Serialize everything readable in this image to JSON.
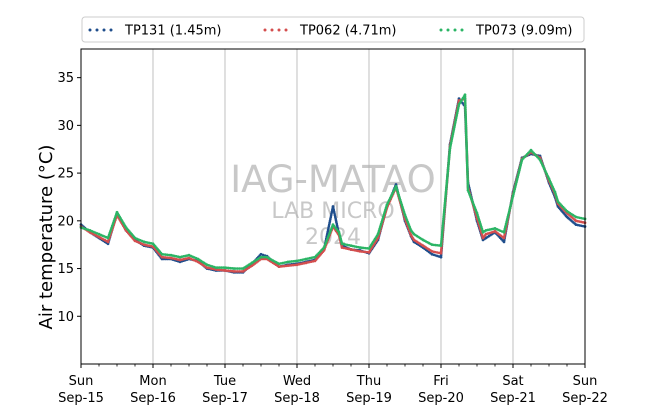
{
  "chart_data": {
    "type": "scatter",
    "ylabel": "Air temperature (°C)",
    "ylim": [
      5,
      38
    ],
    "yticks": [
      10,
      15,
      20,
      25,
      30,
      35
    ],
    "xlim": [
      "2024-09-15T00:00",
      "2024-09-22T00:00"
    ],
    "xticks": [
      {
        "day": "Sun",
        "date": "Sep-15"
      },
      {
        "day": "Mon",
        "date": "Sep-16"
      },
      {
        "day": "Tue",
        "date": "Sep-17"
      },
      {
        "day": "Wed",
        "date": "Sep-18"
      },
      {
        "day": "Thu",
        "date": "Sep-19"
      },
      {
        "day": "Fri",
        "date": "Sep-20"
      },
      {
        "day": "Sat",
        "date": "Sep-21"
      },
      {
        "day": "Sun",
        "date": "Sep-22"
      }
    ],
    "grid": "vertical",
    "legend_placement": "top",
    "watermark": [
      "IAG-MATAO",
      "LAB MICRO",
      "2024"
    ],
    "series": [
      {
        "name": "TP131 (1.45m)",
        "color": "#1f4e8c",
        "x": [
          "2024-09-15T00:00",
          "2024-09-15T03:00",
          "2024-09-15T06:00",
          "2024-09-15T09:00",
          "2024-09-15T12:00",
          "2024-09-15T15:00",
          "2024-09-15T18:00",
          "2024-09-15T21:00",
          "2024-09-16T00:00",
          "2024-09-16T03:00",
          "2024-09-16T06:00",
          "2024-09-16T09:00",
          "2024-09-16T12:00",
          "2024-09-16T15:00",
          "2024-09-16T18:00",
          "2024-09-16T21:00",
          "2024-09-17T00:00",
          "2024-09-17T03:00",
          "2024-09-17T06:00",
          "2024-09-17T09:00",
          "2024-09-17T12:00",
          "2024-09-17T14:00",
          "2024-09-17T15:00",
          "2024-09-17T18:00",
          "2024-09-17T21:00",
          "2024-09-18T00:00",
          "2024-09-18T03:00",
          "2024-09-18T06:00",
          "2024-09-18T09:00",
          "2024-09-18T12:00",
          "2024-09-18T14:00",
          "2024-09-18T15:00",
          "2024-09-18T18:00",
          "2024-09-18T21:00",
          "2024-09-19T00:00",
          "2024-09-19T03:00",
          "2024-09-19T06:00",
          "2024-09-19T09:00",
          "2024-09-19T12:00",
          "2024-09-19T14:00",
          "2024-09-19T15:00",
          "2024-09-19T18:00",
          "2024-09-19T21:00",
          "2024-09-20T00:00",
          "2024-09-20T03:00",
          "2024-09-20T06:00",
          "2024-09-20T08:00",
          "2024-09-20T09:00",
          "2024-09-20T12:00",
          "2024-09-20T14:00",
          "2024-09-20T15:00",
          "2024-09-20T18:00",
          "2024-09-20T21:00",
          "2024-09-21T00:00",
          "2024-09-21T03:00",
          "2024-09-21T06:00",
          "2024-09-21T09:00",
          "2024-09-21T12:00",
          "2024-09-21T14:00",
          "2024-09-21T15:00",
          "2024-09-21T18:00",
          "2024-09-21T21:00",
          "2024-09-22T00:00"
        ],
        "y": [
          19.6,
          18.8,
          18.2,
          17.6,
          20.8,
          19.0,
          18.0,
          17.4,
          17.2,
          16.0,
          16.0,
          15.7,
          16.0,
          15.8,
          15.0,
          14.8,
          14.8,
          14.6,
          14.6,
          15.5,
          16.5,
          16.3,
          16.0,
          15.2,
          15.4,
          15.5,
          15.7,
          15.9,
          17.0,
          21.5,
          18.6,
          17.4,
          17.0,
          16.9,
          16.6,
          18.0,
          21.5,
          23.8,
          20.0,
          18.4,
          17.8,
          17.2,
          16.5,
          16.2,
          28.0,
          32.8,
          32.0,
          24.0,
          20.0,
          18.0,
          18.2,
          18.8,
          17.8,
          23.0,
          26.6,
          27.0,
          26.8,
          24.0,
          22.5,
          21.5,
          20.4,
          19.6,
          19.4
        ]
      },
      {
        "name": "TP062 (4.71m)",
        "color": "#d44e4e",
        "x": [
          "2024-09-15T00:00",
          "2024-09-15T03:00",
          "2024-09-15T06:00",
          "2024-09-15T09:00",
          "2024-09-15T12:00",
          "2024-09-15T15:00",
          "2024-09-15T18:00",
          "2024-09-15T21:00",
          "2024-09-16T00:00",
          "2024-09-16T03:00",
          "2024-09-16T06:00",
          "2024-09-16T09:00",
          "2024-09-16T12:00",
          "2024-09-16T15:00",
          "2024-09-16T18:00",
          "2024-09-16T21:00",
          "2024-09-17T00:00",
          "2024-09-17T03:00",
          "2024-09-17T06:00",
          "2024-09-17T09:00",
          "2024-09-17T12:00",
          "2024-09-17T14:00",
          "2024-09-17T15:00",
          "2024-09-17T18:00",
          "2024-09-17T21:00",
          "2024-09-18T00:00",
          "2024-09-18T03:00",
          "2024-09-18T06:00",
          "2024-09-18T09:00",
          "2024-09-18T12:00",
          "2024-09-18T14:00",
          "2024-09-18T15:00",
          "2024-09-18T18:00",
          "2024-09-18T21:00",
          "2024-09-19T00:00",
          "2024-09-19T03:00",
          "2024-09-19T06:00",
          "2024-09-19T09:00",
          "2024-09-19T12:00",
          "2024-09-19T14:00",
          "2024-09-19T15:00",
          "2024-09-19T18:00",
          "2024-09-19T21:00",
          "2024-09-20T00:00",
          "2024-09-20T03:00",
          "2024-09-20T06:00",
          "2024-09-20T08:00",
          "2024-09-20T09:00",
          "2024-09-20T12:00",
          "2024-09-20T14:00",
          "2024-09-20T15:00",
          "2024-09-20T18:00",
          "2024-09-20T21:00",
          "2024-09-21T00:00",
          "2024-09-21T03:00",
          "2024-09-21T06:00",
          "2024-09-21T09:00",
          "2024-09-21T12:00",
          "2024-09-21T14:00",
          "2024-09-21T15:00",
          "2024-09-21T18:00",
          "2024-09-21T21:00",
          "2024-09-22T00:00"
        ],
        "y": [
          19.4,
          18.8,
          18.3,
          17.8,
          20.6,
          19.0,
          17.9,
          17.5,
          17.3,
          16.2,
          16.1,
          15.9,
          16.1,
          15.7,
          15.1,
          14.9,
          14.8,
          14.7,
          14.7,
          15.3,
          16.0,
          16.0,
          15.8,
          15.2,
          15.3,
          15.4,
          15.6,
          15.8,
          16.9,
          19.4,
          18.5,
          17.2,
          17.0,
          16.8,
          16.7,
          18.2,
          21.4,
          23.5,
          20.2,
          18.5,
          18.0,
          17.4,
          16.8,
          16.6,
          27.8,
          32.6,
          32.8,
          23.5,
          20.3,
          18.2,
          18.6,
          18.9,
          18.2,
          22.8,
          26.5,
          27.2,
          26.6,
          24.2,
          22.8,
          21.8,
          20.8,
          20.0,
          19.8
        ]
      },
      {
        "name": "TP073 (9.09m)",
        "color": "#2bb565",
        "x": [
          "2024-09-15T00:00",
          "2024-09-15T03:00",
          "2024-09-15T06:00",
          "2024-09-15T09:00",
          "2024-09-15T12:00",
          "2024-09-15T15:00",
          "2024-09-15T18:00",
          "2024-09-15T21:00",
          "2024-09-16T00:00",
          "2024-09-16T03:00",
          "2024-09-16T06:00",
          "2024-09-16T09:00",
          "2024-09-16T12:00",
          "2024-09-16T15:00",
          "2024-09-16T18:00",
          "2024-09-16T21:00",
          "2024-09-17T00:00",
          "2024-09-17T03:00",
          "2024-09-17T06:00",
          "2024-09-17T09:00",
          "2024-09-17T12:00",
          "2024-09-17T14:00",
          "2024-09-17T15:00",
          "2024-09-17T18:00",
          "2024-09-17T21:00",
          "2024-09-18T00:00",
          "2024-09-18T03:00",
          "2024-09-18T06:00",
          "2024-09-18T09:00",
          "2024-09-18T12:00",
          "2024-09-18T14:00",
          "2024-09-18T15:00",
          "2024-09-18T18:00",
          "2024-09-18T21:00",
          "2024-09-19T00:00",
          "2024-09-19T03:00",
          "2024-09-19T06:00",
          "2024-09-19T09:00",
          "2024-09-19T12:00",
          "2024-09-19T14:00",
          "2024-09-19T15:00",
          "2024-09-19T18:00",
          "2024-09-19T21:00",
          "2024-09-20T00:00",
          "2024-09-20T03:00",
          "2024-09-20T06:00",
          "2024-09-20T08:00",
          "2024-09-20T09:00",
          "2024-09-20T12:00",
          "2024-09-20T14:00",
          "2024-09-20T15:00",
          "2024-09-20T18:00",
          "2024-09-20T21:00",
          "2024-09-21T00:00",
          "2024-09-21T03:00",
          "2024-09-21T06:00",
          "2024-09-21T09:00",
          "2024-09-21T12:00",
          "2024-09-21T14:00",
          "2024-09-21T15:00",
          "2024-09-21T18:00",
          "2024-09-21T21:00",
          "2024-09-22T00:00"
        ],
        "y": [
          19.3,
          19.0,
          18.6,
          18.2,
          20.9,
          19.3,
          18.2,
          17.8,
          17.6,
          16.5,
          16.4,
          16.2,
          16.4,
          16.0,
          15.4,
          15.1,
          15.1,
          15.0,
          15.0,
          15.6,
          16.2,
          16.2,
          16.0,
          15.5,
          15.7,
          15.8,
          16.0,
          16.2,
          17.2,
          19.6,
          18.8,
          17.6,
          17.4,
          17.2,
          17.1,
          18.6,
          21.7,
          23.6,
          20.6,
          19.0,
          18.6,
          18.0,
          17.5,
          17.4,
          27.6,
          32.2,
          33.2,
          23.2,
          20.8,
          18.8,
          19.0,
          19.2,
          18.8,
          22.6,
          26.4,
          27.4,
          26.4,
          24.4,
          23.0,
          22.0,
          21.0,
          20.4,
          20.2
        ]
      }
    ]
  }
}
